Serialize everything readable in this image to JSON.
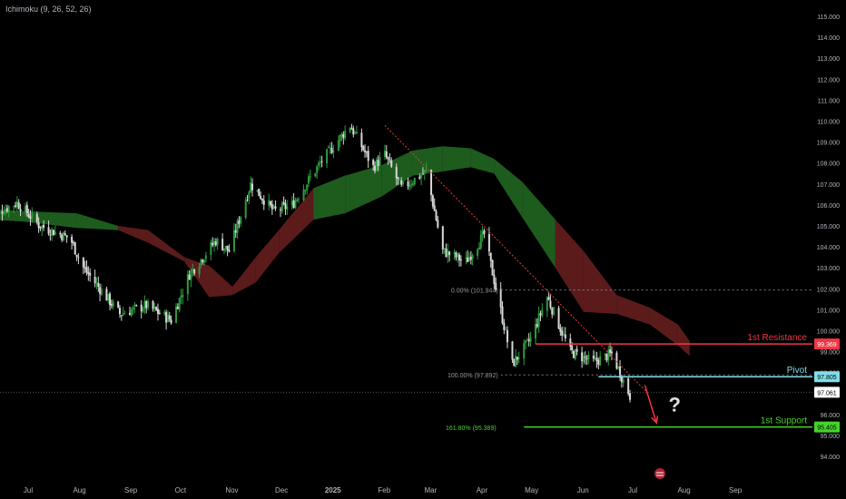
{
  "indicator": {
    "label": "Ichimoku (9, 26, 52, 26)"
  },
  "colors": {
    "background": "#000000",
    "bull": "#2e9a3e",
    "bear": "#d8d8d8",
    "cloud_bull": "#1e5c1e",
    "cloud_bear": "#5c1b1b",
    "resistance": "#f23645",
    "pivot": "#80deea",
    "support": "#44d42b",
    "trendline": "#e0403a",
    "arrow": "#f23645",
    "question_mark": "#e0e0e0",
    "axis_text": "#b2b5be"
  },
  "chart_data": {
    "type": "candlestick",
    "title": "",
    "xlabel": "",
    "ylabel": "",
    "ylim": [
      93.4,
      115.6
    ],
    "grid": false,
    "x_ticks": [
      "Jul",
      "Aug",
      "Sep",
      "Oct",
      "Nov",
      "Dec",
      "2025",
      "Feb",
      "Mar",
      "Apr",
      "May",
      "Jun",
      "Jul",
      "Aug",
      "Sep"
    ],
    "y_ticks": [
      "94.000",
      "95.000",
      "96.000",
      "97.000",
      "98.000",
      "99.000",
      "100.000",
      "101.000",
      "102.000",
      "103.000",
      "104.000",
      "105.000",
      "106.000",
      "107.000",
      "108.000",
      "109.000",
      "110.000",
      "111.000",
      "112.000",
      "113.000",
      "114.000",
      "115.000"
    ],
    "price_path": [
      [
        "2024-06-10",
        105.5
      ],
      [
        "2024-06-26",
        106.1
      ],
      [
        "2024-07-10",
        105.0
      ],
      [
        "2024-07-28",
        104.4
      ],
      [
        "2024-08-05",
        103.0
      ],
      [
        "2024-08-27",
        100.8
      ],
      [
        "2024-09-12",
        101.2
      ],
      [
        "2024-09-27",
        100.5
      ],
      [
        "2024-10-08",
        102.7
      ],
      [
        "2024-10-24",
        104.3
      ],
      [
        "2024-11-01",
        103.8
      ],
      [
        "2024-11-14",
        107.0
      ],
      [
        "2024-11-28",
        105.7
      ],
      [
        "2024-12-09",
        106.0
      ],
      [
        "2024-12-26",
        108.0
      ],
      [
        "2025-01-13",
        109.8
      ],
      [
        "2025-01-27",
        107.8
      ],
      [
        "2025-02-03",
        108.4
      ],
      [
        "2025-02-13",
        106.8
      ],
      [
        "2025-02-28",
        107.6
      ],
      [
        "2025-03-10",
        103.8
      ],
      [
        "2025-03-24",
        103.3
      ],
      [
        "2025-04-04",
        104.6
      ],
      [
        "2025-04-21",
        98.4
      ],
      [
        "2025-05-02",
        99.6
      ],
      [
        "2025-05-12",
        101.6
      ],
      [
        "2025-05-26",
        99.0
      ],
      [
        "2025-06-09",
        98.5
      ],
      [
        "2025-06-20",
        98.9
      ],
      [
        "2025-07-01",
        96.9
      ]
    ],
    "cloud": [
      [
        "2024-06-10",
        105.3,
        105.8
      ],
      [
        "2024-07-01",
        105.2,
        105.7
      ],
      [
        "2024-08-01",
        104.9,
        105.6
      ],
      [
        "2024-08-26",
        104.8,
        105.0
      ],
      [
        "2024-09-13",
        104.2,
        104.8
      ],
      [
        "2024-10-05",
        103.3,
        103.5
      ],
      [
        "2024-10-20",
        101.6,
        103.1
      ],
      [
        "2024-11-03",
        101.7,
        102.1
      ],
      [
        "2024-11-17",
        102.3,
        103.5
      ],
      [
        "2024-12-01",
        103.7,
        104.8
      ],
      [
        "2024-12-22",
        105.3,
        106.8
      ],
      [
        "2025-01-10",
        105.6,
        107.4
      ],
      [
        "2025-02-01",
        106.4,
        107.9
      ],
      [
        "2025-02-20",
        107.4,
        108.6
      ],
      [
        "2025-03-10",
        107.6,
        108.8
      ],
      [
        "2025-03-27",
        107.8,
        108.7
      ],
      [
        "2025-04-10",
        107.5,
        108.2
      ],
      [
        "2025-04-27",
        105.4,
        107.1
      ],
      [
        "2025-05-17",
        103.0,
        105.3
      ],
      [
        "2025-06-03",
        100.9,
        103.8
      ],
      [
        "2025-06-23",
        100.8,
        101.7
      ],
      [
        "2025-07-13",
        100.3,
        101.1
      ],
      [
        "2025-07-30",
        99.3,
        100.3
      ],
      [
        "2025-08-06",
        98.8,
        99.5
      ]
    ],
    "trendline": {
      "from": [
        "2025-02-03",
        109.8
      ],
      "to": [
        "2025-07-12",
        97.0
      ]
    },
    "fib_levels": [
      {
        "label": "0.00% (101.944)",
        "value": 101.944,
        "from": "2025-04-14"
      },
      {
        "label": "100.00% (97.892)",
        "value": 97.892,
        "from": "2025-04-14"
      },
      {
        "label": "161.80% (95.389)",
        "value": 95.389,
        "from": "2025-04-14"
      }
    ],
    "levels": [
      {
        "name": "1st Resistance",
        "value": 99.369,
        "price_label": "99.369",
        "from": "2025-05-05",
        "color_key": "resistance"
      },
      {
        "name": "Pivot",
        "value": 97.805,
        "price_label": "97.805",
        "from": "2025-06-12",
        "color_key": "pivot"
      },
      {
        "name": "1st Support",
        "value": 95.405,
        "price_label": "95.405",
        "from": "2025-04-28",
        "color_key": "support"
      }
    ],
    "last_price": {
      "value": 97.061,
      "price_label": "97.061"
    },
    "projection_arrow": {
      "from": [
        "2025-07-10",
        97.4
      ],
      "to": [
        "2025-07-17",
        95.6
      ]
    },
    "question_mark": {
      "text": "?",
      "at": [
        "2025-07-28",
        96.5
      ]
    }
  }
}
